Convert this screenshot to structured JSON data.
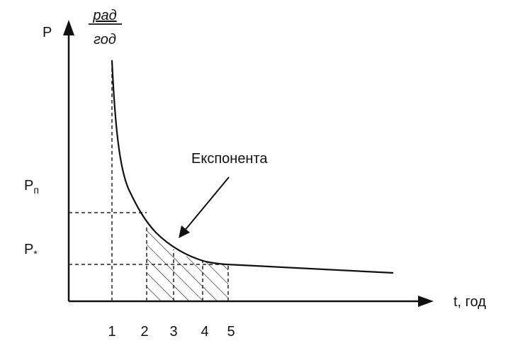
{
  "y_axis": {
    "label": "P",
    "unit_numerator": "рад",
    "unit_denominator": "год"
  },
  "x_axis": {
    "label": "t, год",
    "ticks": [
      "1",
      "2",
      "3",
      "4",
      "5"
    ]
  },
  "levels": [
    {
      "symbol": "P",
      "subscript": "п"
    },
    {
      "symbol": "P",
      "subscript": "*"
    }
  ],
  "annotation": "Експонента"
}
